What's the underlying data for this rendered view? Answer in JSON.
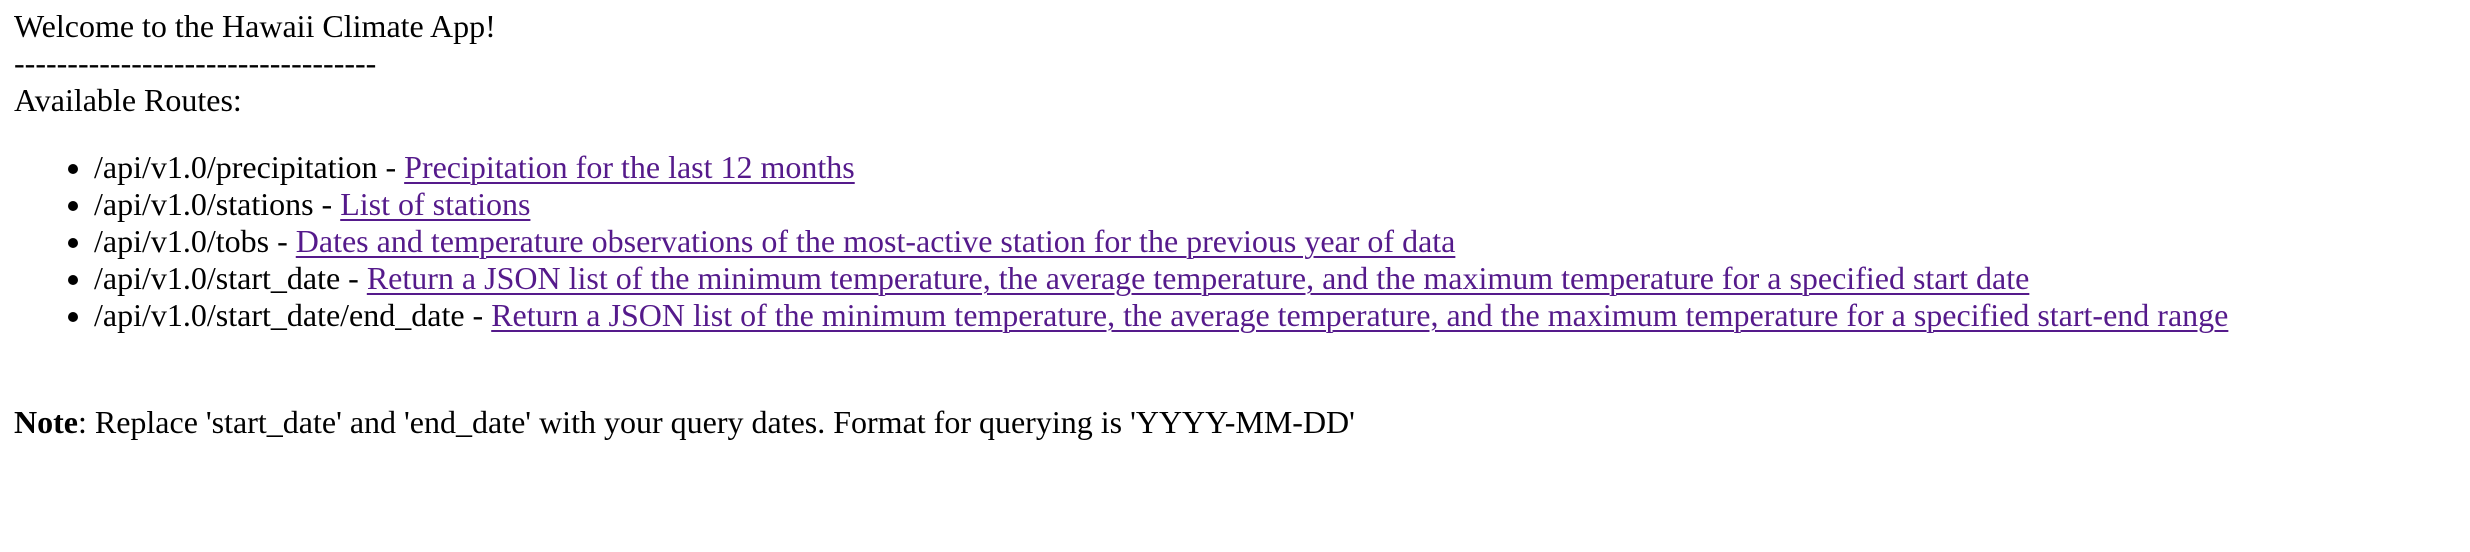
{
  "header": {
    "title": "Welcome to the Hawaii Climate App!",
    "separator": "----------------------------------",
    "routes_heading": "Available Routes:"
  },
  "routes": [
    {
      "path": "/api/v1.0/precipitation",
      "separator": " - ",
      "link_text": "Precipitation for the last 12 months"
    },
    {
      "path": "/api/v1.0/stations",
      "separator": " - ",
      "link_text": "List of stations"
    },
    {
      "path": "/api/v1.0/tobs",
      "separator": " - ",
      "link_text": "Dates and temperature observations of the most-active station for the previous year of data"
    },
    {
      "path": "/api/v1.0/start_date",
      "separator": " - ",
      "link_text": "Return a JSON list of the minimum temperature, the average temperature, and the maximum temperature for a specified start date"
    },
    {
      "path": "/api/v1.0/start_date/end_date",
      "separator": " - ",
      "link_text": "Return a JSON list of the minimum temperature, the average temperature, and the maximum temperature for a specified start-end range"
    }
  ],
  "note": {
    "label": "Note",
    "text": ": Replace 'start_date' and 'end_date' with your query dates. Format for querying is 'YYYY-MM-DD'"
  },
  "colors": {
    "text": "#000000",
    "visited_link": "#551a8b",
    "background": "#ffffff"
  }
}
